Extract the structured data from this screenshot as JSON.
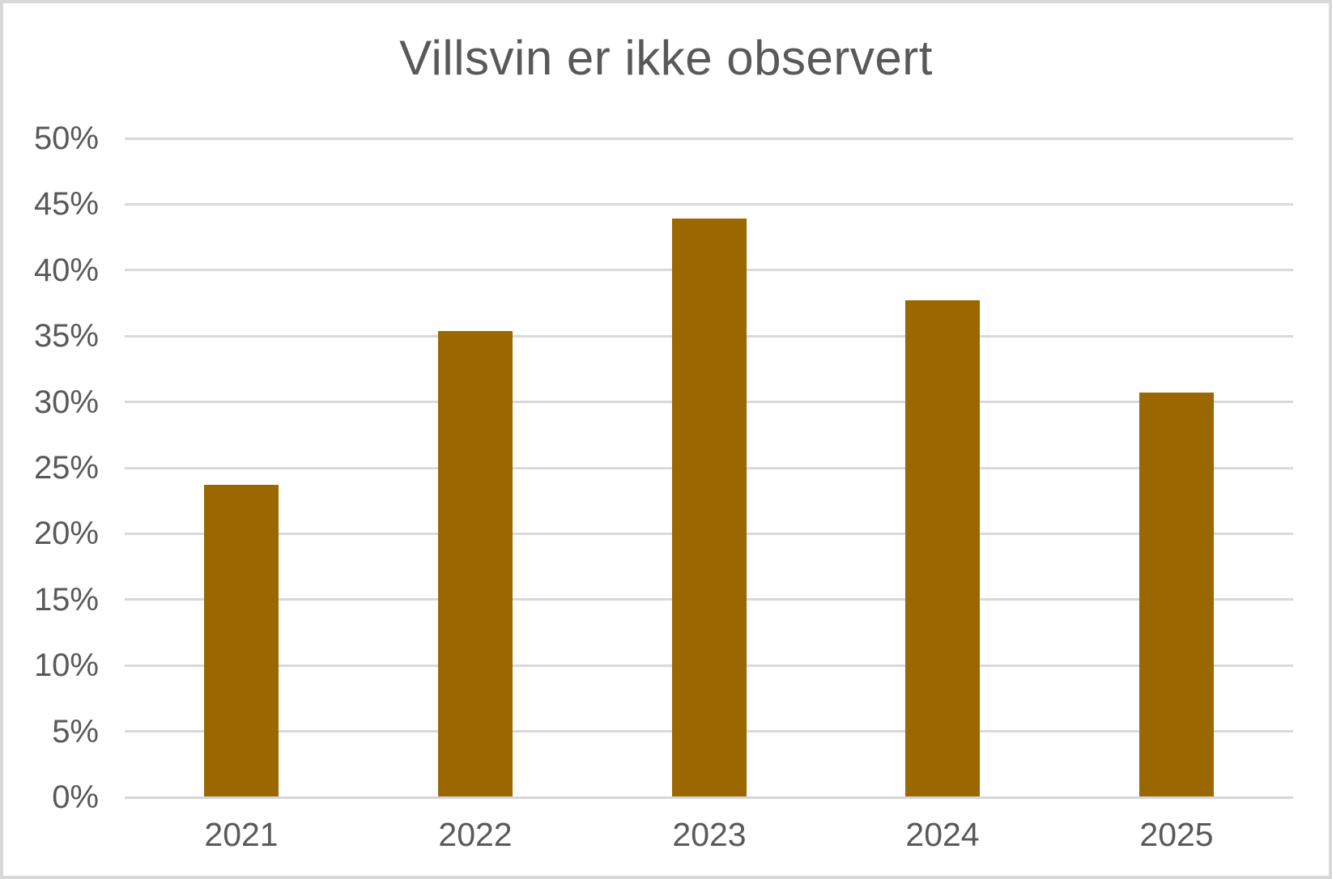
{
  "window": {
    "background": "#FFFFFF",
    "border_color": "#D8D8D8"
  },
  "chart_data": {
    "type": "bar",
    "title": "Villsvin er ikke observert",
    "categories": [
      "2021",
      "2022",
      "2023",
      "2024",
      "2025"
    ],
    "values": [
      23.7,
      35.4,
      43.9,
      37.7,
      30.7
    ],
    "value_unit": "%",
    "xlabel": "",
    "ylabel": "",
    "ylim": [
      0,
      50
    ],
    "y_tick_step": 5,
    "y_tick_labels": [
      "0%",
      "5%",
      "10%",
      "15%",
      "20%",
      "25%",
      "30%",
      "35%",
      "40%",
      "45%",
      "50%"
    ],
    "grid": "horizontal",
    "legend_position": "none",
    "data_labels": false,
    "colors": {
      "bar_fill": "#9A6700",
      "title_text": "#595959",
      "tick_text": "#595959",
      "gridline": "#D9D9D9",
      "axis_line": "#D6D6D6"
    }
  }
}
